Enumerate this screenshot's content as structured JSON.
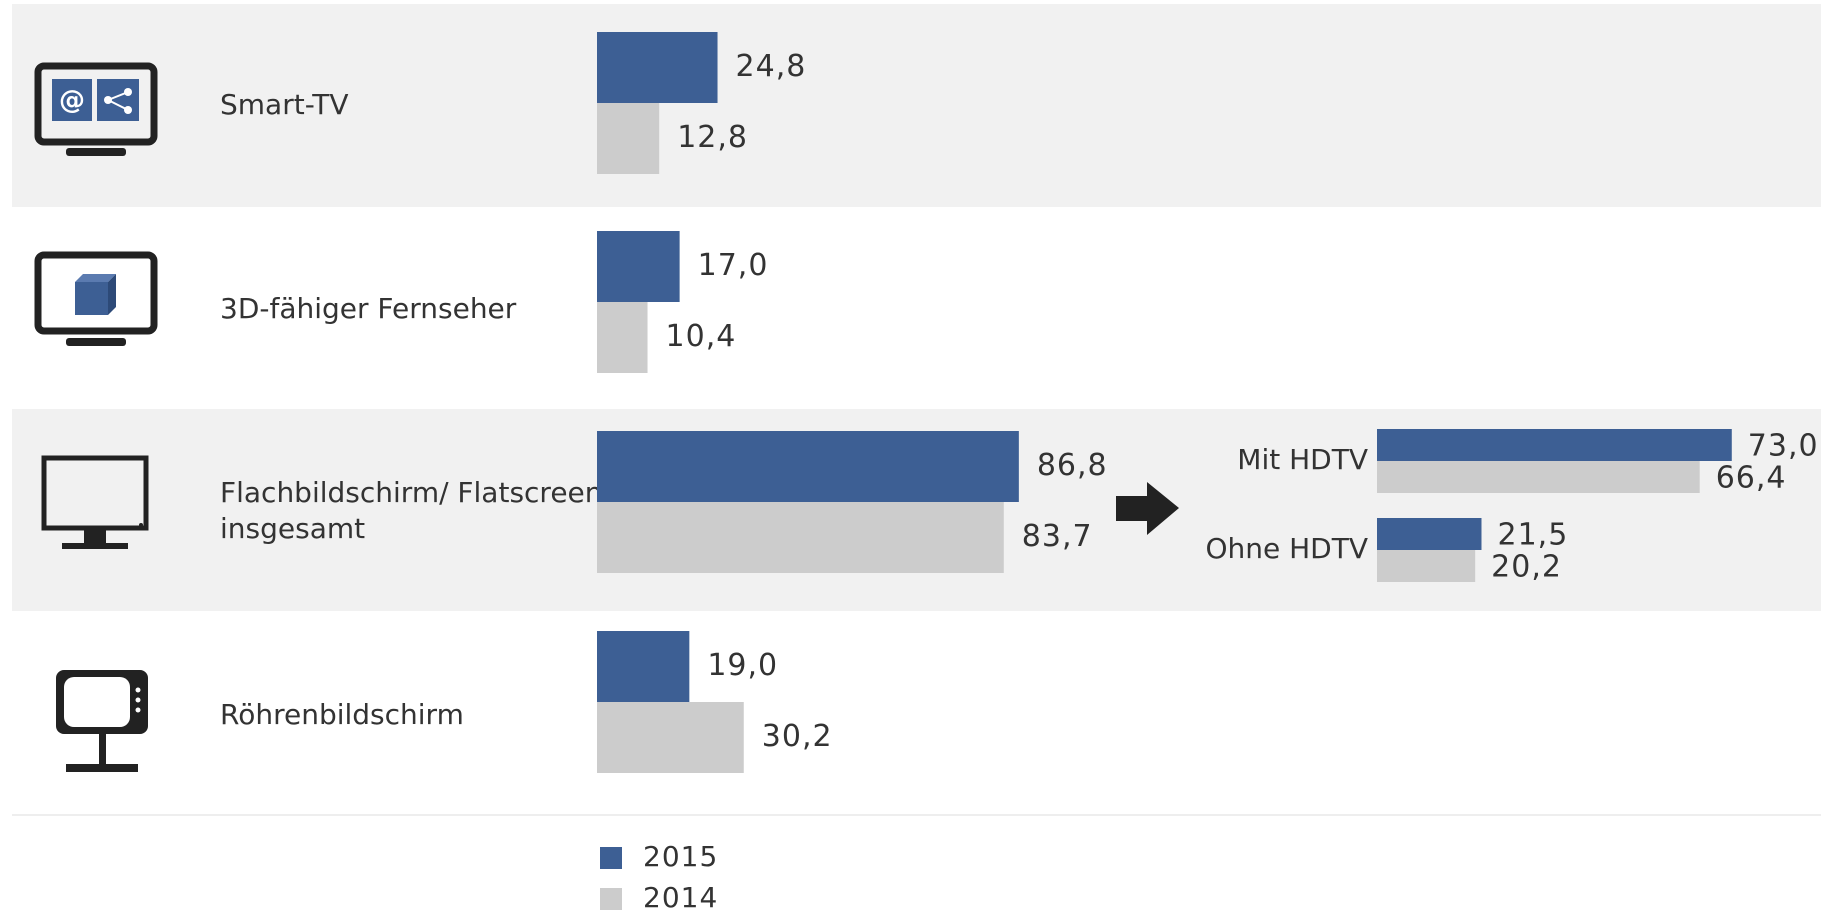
{
  "chart_data": {
    "type": "bar",
    "orientation": "horizontal",
    "categories": [
      "Smart-TV",
      "3D-fähiger Fernseher",
      "Flachbildschirm/ Flatscreen insgesamt",
      "Röhrenbildschirm"
    ],
    "series": [
      {
        "name": "2015",
        "color": "#3d5f94",
        "values": [
          24.8,
          17.0,
          86.8,
          19.0
        ],
        "value_labels": [
          "24,8",
          "17,0",
          "86,8",
          "19,0"
        ]
      },
      {
        "name": "2014",
        "color": "#cccccc",
        "values": [
          12.8,
          10.4,
          83.7,
          30.2
        ],
        "value_labels": [
          "12,8",
          "10,4",
          "83,7",
          "30,2"
        ]
      }
    ],
    "breakdown": {
      "categories": [
        "Mit HDTV",
        "Ohne HDTV"
      ],
      "series": [
        {
          "name": "2015",
          "color": "#3d5f94",
          "values": [
            73.0,
            21.5
          ],
          "value_labels": [
            "73,0",
            "21,5"
          ]
        },
        {
          "name": "2014",
          "color": "#cccccc",
          "values": [
            66.4,
            20.2
          ],
          "value_labels": [
            "66,4",
            "20,2"
          ]
        }
      ]
    }
  }
}
